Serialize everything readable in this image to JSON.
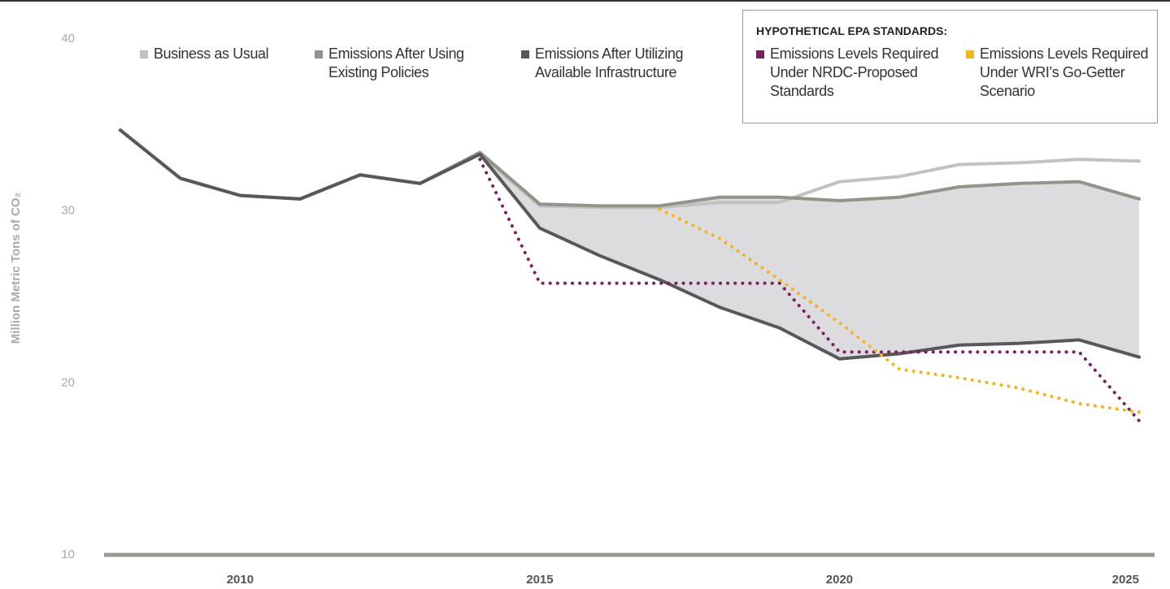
{
  "chart_data": {
    "type": "line",
    "y_label": "Million Metric Tons of CO₂",
    "x": [
      2008,
      2009,
      2010,
      2011,
      2012,
      2013,
      2014,
      2015,
      2016,
      2017,
      2018,
      2019,
      2020,
      2021,
      2022,
      2023,
      2024,
      2025
    ],
    "xlim": [
      2008,
      2025
    ],
    "xticks": [
      2010,
      2015,
      2020,
      2025
    ],
    "ylim": [
      10,
      40
    ],
    "yticks": [
      10,
      20,
      30,
      40
    ],
    "legend_group_title": "HYPOTHETICAL EPA STANDARDS:",
    "series": [
      {
        "name": "Business as Usual",
        "color": "#c2c2c2",
        "line_style": "solid",
        "values": [
          34.7,
          31.9,
          30.9,
          30.7,
          32.1,
          31.6,
          33.3,
          30.3,
          30.2,
          30.2,
          30.5,
          30.5,
          31.7,
          32.0,
          32.7,
          32.8,
          33.0,
          32.9
        ]
      },
      {
        "name": "Emissions After Using Existing Policies",
        "color": "#939389",
        "line_style": "solid",
        "values": [
          34.7,
          31.9,
          30.9,
          30.7,
          32.1,
          31.6,
          33.4,
          30.4,
          30.3,
          30.3,
          30.8,
          30.8,
          30.6,
          30.8,
          31.4,
          31.6,
          31.7,
          30.7
        ]
      },
      {
        "name": "Emissions After Utilizing Available Infrastructure",
        "color": "#58585a",
        "line_style": "solid",
        "values": [
          34.7,
          31.9,
          30.9,
          30.7,
          32.1,
          31.6,
          33.3,
          29.0,
          27.4,
          26.0,
          24.4,
          23.2,
          21.4,
          21.7,
          22.2,
          22.3,
          22.5,
          21.5
        ]
      },
      {
        "name": "Emissions Levels Required Under NRDC-Proposed Standards",
        "color": "#7b1f5e",
        "line_style": "dotted",
        "values": [
          null,
          null,
          null,
          null,
          null,
          null,
          33.0,
          25.8,
          25.8,
          25.8,
          25.8,
          25.8,
          21.8,
          21.8,
          21.8,
          21.8,
          21.8,
          17.8
        ]
      },
      {
        "name": "Emissions Levels Required Under WRI’s Go-Getter Scenario",
        "color": "#f3b321",
        "line_style": "dotted",
        "values": [
          null,
          null,
          null,
          null,
          null,
          null,
          null,
          null,
          null,
          30.1,
          28.4,
          26.0,
          23.5,
          20.8,
          20.3,
          19.7,
          18.8,
          18.3
        ]
      }
    ],
    "shaded_between": [
      1,
      2
    ],
    "shade_color": "#dcdcde"
  }
}
